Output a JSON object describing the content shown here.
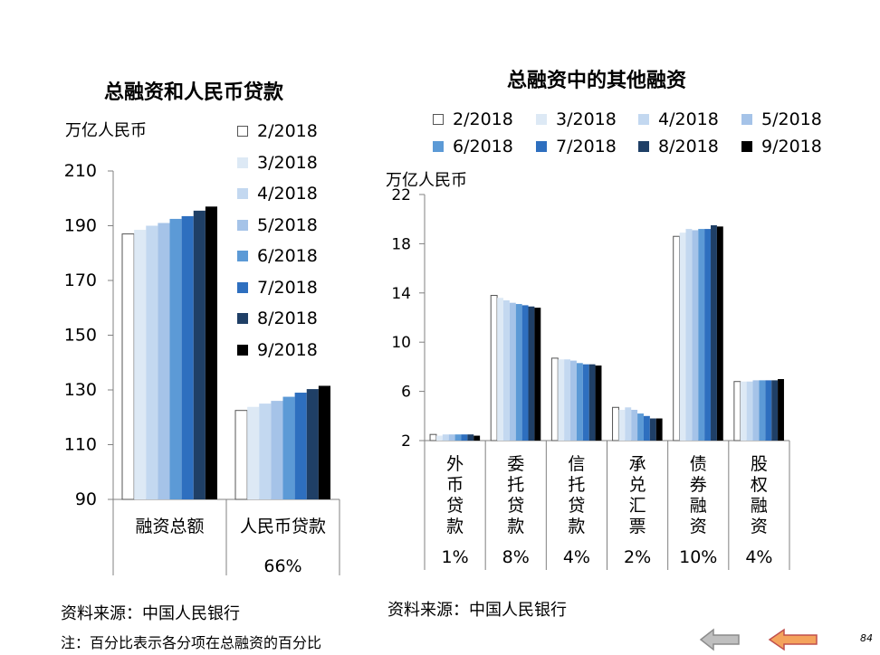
{
  "colors": [
    "#ffffff",
    "#dde9f5",
    "#c3d8f0",
    "#a5c3e8",
    "#5c9ad6",
    "#2e6fbf",
    "#1f3f66",
    "#000000"
  ],
  "legend_labels": [
    "2/2018",
    "3/2018",
    "4/2018",
    "5/2018",
    "6/2018",
    "7/2018",
    "8/2018",
    "9/2018"
  ],
  "footer": {
    "source_left": "资料来源：中国人民银行",
    "source_right": "资料来源：中国人民银行",
    "note": "注：百分比表示各分项在总融资的百分比",
    "page_number": "84"
  },
  "nav": {
    "back_icon": "arrow-left-gray-icon",
    "prev_icon": "arrow-left-orange-icon"
  },
  "chart_data": [
    {
      "type": "bar",
      "title": "总融资和人民币贷款",
      "unit_label": "万亿人民币",
      "ylim": [
        90,
        210
      ],
      "yticks": [
        90,
        110,
        130,
        150,
        170,
        190,
        210
      ],
      "categories": [
        "融资总额",
        "人民币贷款"
      ],
      "percent_labels": [
        "",
        "66%"
      ],
      "grid": false,
      "legend_position": "right",
      "series": [
        {
          "name": "2/2018",
          "values": [
            187,
            122.5
          ]
        },
        {
          "name": "3/2018",
          "values": [
            188.5,
            123.8
          ]
        },
        {
          "name": "4/2018",
          "values": [
            190,
            125
          ]
        },
        {
          "name": "5/2018",
          "values": [
            191,
            126
          ]
        },
        {
          "name": "6/2018",
          "values": [
            192.5,
            127.5
          ]
        },
        {
          "name": "7/2018",
          "values": [
            193.5,
            129
          ]
        },
        {
          "name": "8/2018",
          "values": [
            195.5,
            130.3
          ]
        },
        {
          "name": "9/2018",
          "values": [
            197,
            131.5
          ]
        }
      ]
    },
    {
      "type": "bar",
      "title": "总融资中的其他融资",
      "unit_label": "万亿人民币",
      "ylim": [
        2,
        22
      ],
      "yticks": [
        2,
        6,
        10,
        14,
        18,
        22
      ],
      "categories": [
        "外币贷款",
        "委托贷款",
        "信托贷款",
        "承兑汇票",
        "债券融资",
        "股权融资"
      ],
      "percent_labels": [
        "1%",
        "8%",
        "4%",
        "2%",
        "10%",
        "4%"
      ],
      "grid": false,
      "legend_position": "top",
      "series": [
        {
          "name": "2/2018",
          "values": [
            2.5,
            13.8,
            8.7,
            4.7,
            18.6,
            6.8
          ]
        },
        {
          "name": "3/2018",
          "values": [
            2.4,
            13.6,
            8.6,
            4.5,
            18.9,
            6.8
          ]
        },
        {
          "name": "4/2018",
          "values": [
            2.5,
            13.4,
            8.6,
            4.7,
            19.2,
            6.8
          ]
        },
        {
          "name": "5/2018",
          "values": [
            2.5,
            13.2,
            8.5,
            4.5,
            19.1,
            6.9
          ]
        },
        {
          "name": "6/2018",
          "values": [
            2.5,
            13.1,
            8.3,
            4.2,
            19.2,
            6.9
          ]
        },
        {
          "name": "7/2018",
          "values": [
            2.5,
            13.0,
            8.2,
            4.0,
            19.2,
            6.9
          ]
        },
        {
          "name": "8/2018",
          "values": [
            2.5,
            12.9,
            8.2,
            3.8,
            19.5,
            6.9
          ]
        },
        {
          "name": "9/2018",
          "values": [
            2.4,
            12.8,
            8.1,
            3.8,
            19.4,
            7.0
          ]
        }
      ]
    }
  ]
}
